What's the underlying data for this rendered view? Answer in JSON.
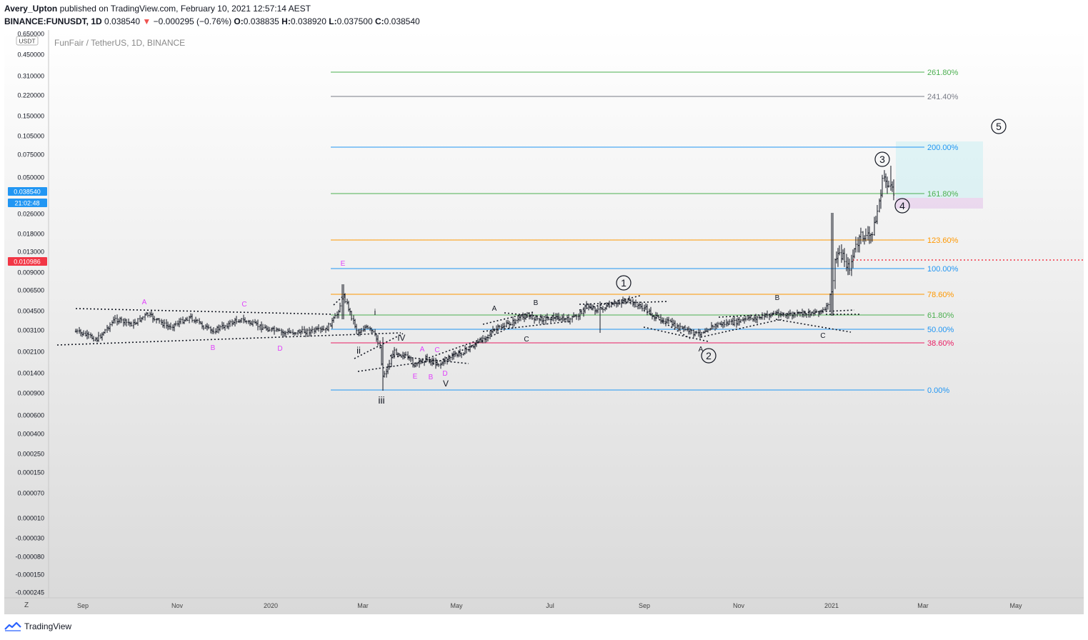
{
  "header": {
    "user": "Avery_Upton",
    "published": "published on TradingView.com, February 10, 2021 12:57:14 AEST"
  },
  "ticker": {
    "symbol": "BINANCE:FUNUSDT, 1D",
    "price": "0.038540",
    "change_arrow": "▼",
    "change": "−0.000295 (−0.76%)",
    "o_label": "O:",
    "o": "0.038835",
    "h_label": "H:",
    "h": "0.038920",
    "l_label": "L:",
    "l": "0.037500",
    "c_label": "C:",
    "c": "0.038540"
  },
  "chart_data": {
    "type": "candlestick",
    "title": "FunFair / TetherUS, 1D, BINANCE",
    "currency": "USDT",
    "y_ticks": [
      "0.650000",
      "0.450000",
      "0.310000",
      "0.220000",
      "0.150000",
      "0.105000",
      "0.075000",
      "0.050000",
      "0.038540",
      "0.026000",
      "0.018000",
      "0.013000",
      "0.010986",
      "0.009000",
      "0.006500",
      "0.004500",
      "0.003100",
      "0.002100",
      "0.001400",
      "0.000900",
      "0.000600",
      "0.000400",
      "0.000250",
      "0.000150",
      "0.000070",
      "0.000010",
      "-0.000030",
      "-0.000080",
      "-0.000150",
      "-0.000245"
    ],
    "x_ticks": [
      "Sep",
      "Nov",
      "2020",
      "Mar",
      "May",
      "Jul",
      "Sep",
      "Nov",
      "2021",
      "Mar",
      "May"
    ],
    "last_price": "0.038540",
    "countdown": "21:02:48",
    "marked_price": "0.010986",
    "fib_levels": [
      {
        "label": "261.80%",
        "color": "#4caf50"
      },
      {
        "label": "241.40%",
        "color": "#787b86"
      },
      {
        "label": "200.00%",
        "color": "#2196f3"
      },
      {
        "label": "161.80%",
        "color": "#4caf50"
      },
      {
        "label": "123.60%",
        "color": "#ff9800"
      },
      {
        "label": "100.00%",
        "color": "#2196f3"
      },
      {
        "label": "78.60%",
        "color": "#ff9800"
      },
      {
        "label": "61.80%",
        "color": "#4caf50"
      },
      {
        "label": "50.00%",
        "color": "#2196f3"
      },
      {
        "label": "38.60%",
        "color": "#e91e63"
      },
      {
        "label": "0.00%",
        "color": "#2196f3"
      }
    ],
    "wave_labels": {
      "major": [
        "1",
        "2",
        "3",
        "4",
        "5"
      ],
      "minor_roman": [
        "i",
        "ii",
        "iii",
        "iV",
        "V"
      ],
      "corrective_magenta": [
        "A",
        "B",
        "C",
        "D",
        "E",
        "E",
        "A",
        "B",
        "C",
        "D",
        "E"
      ],
      "corrective_black": [
        "A",
        "B",
        "C",
        "A",
        "B",
        "C"
      ]
    },
    "axis_corner": "Z",
    "colors": {
      "candles": "#131722",
      "price_badge": "#2196f3",
      "marked_badge": "#f23645",
      "target_box": "#b2ebf2",
      "stop_box": "#e1bee7"
    }
  },
  "footer": {
    "brand": "TradingView"
  }
}
